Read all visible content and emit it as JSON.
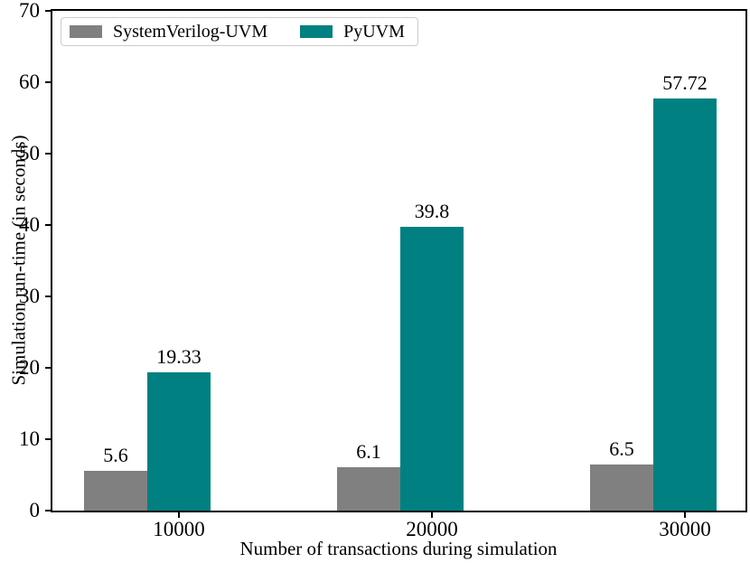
{
  "chart_data": {
    "type": "bar",
    "categories": [
      "10000",
      "20000",
      "30000"
    ],
    "series": [
      {
        "name": "SystemVerilog-UVM",
        "color": "#808080",
        "values": [
          5.6,
          6.1,
          6.5
        ],
        "labels": [
          "5.6",
          "6.1",
          "6.5"
        ]
      },
      {
        "name": "PyUVM",
        "color": "#008080",
        "values": [
          19.33,
          39.8,
          57.72
        ],
        "labels": [
          "19.33",
          "39.8",
          "57.72"
        ]
      }
    ],
    "title": "",
    "xlabel": "Number of transactions during simulation",
    "ylabel": "Simulation run-time (in seconds)",
    "ylim": [
      0,
      70
    ],
    "yticks": [
      0,
      10,
      20,
      30,
      40,
      50,
      60,
      70
    ],
    "grid": false,
    "legend_position": "upper-left",
    "bar_value_labels_shown": true,
    "axis_color": "#000000",
    "background_color": "#ffffff"
  }
}
